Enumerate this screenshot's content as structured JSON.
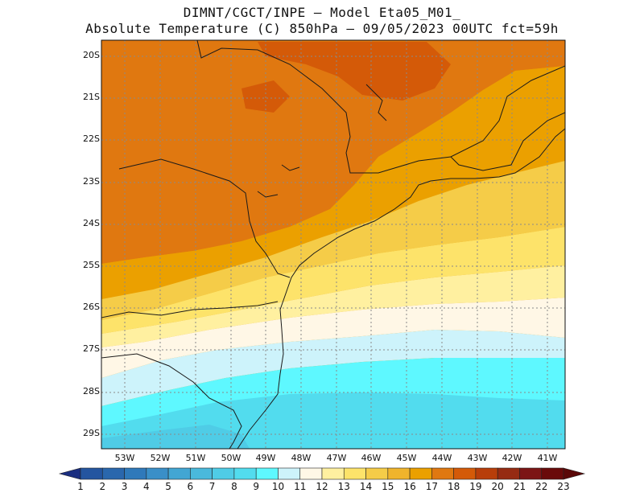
{
  "title_line1": "DIMNT/CGCT/INPE –  Model Eta05_M01_",
  "title_line2": "Absolute Temperature (C) 850hPa –  09/05/2023 00UTC fct=59h",
  "lat_labels": [
    "20S",
    "21S",
    "22S",
    "23S",
    "24S",
    "25S",
    "26S",
    "27S",
    "28S",
    "29S"
  ],
  "lon_labels": [
    "53W",
    "52W",
    "51W",
    "50W",
    "49W",
    "48W",
    "47W",
    "46W",
    "45W",
    "44W",
    "43W",
    "42W",
    "41W"
  ],
  "colorbar": {
    "labels": [
      "1",
      "2",
      "3",
      "4",
      "5",
      "6",
      "7",
      "8",
      "9",
      "10",
      "11",
      "12",
      "13",
      "14",
      "15",
      "16",
      "17",
      "18",
      "19",
      "20",
      "21",
      "22",
      "23"
    ],
    "colors": [
      "#1f3f8f",
      "#2455a0",
      "#2a67ad",
      "#2f79ba",
      "#3a8fc8",
      "#42a6d3",
      "#4ab9dc",
      "#4fcce6",
      "#52dcee",
      "#5ef8ff",
      "#cdf3fb",
      "#fff7e6",
      "#fff0a0",
      "#fde36a",
      "#f5cc48",
      "#f0b42c",
      "#eba000",
      "#e07810",
      "#d45a08",
      "#b83e0a",
      "#962b12",
      "#7c1515",
      "#6a0a0a"
    ],
    "left_arrow_color": "#1a2e80",
    "right_arrow_color": "#5a0808"
  },
  "background_color": "#eba000"
}
